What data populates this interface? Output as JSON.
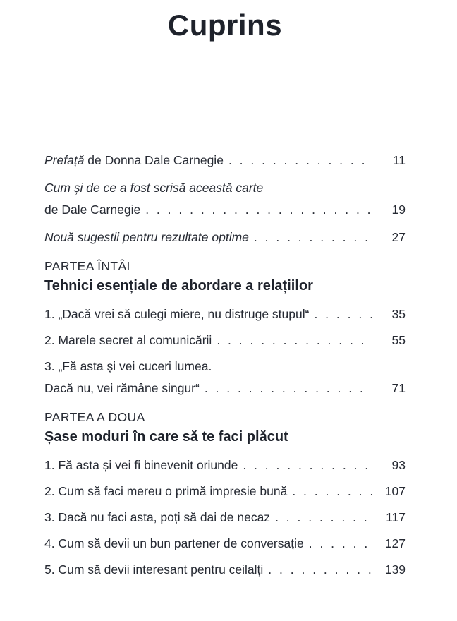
{
  "page": {
    "title": "Cuprins"
  },
  "colors": {
    "text": "#262a33",
    "heading": "#1e222b",
    "background": "#ffffff"
  },
  "toc": {
    "front_matter": [
      {
        "title_italic": "Prefață",
        "title_regular": " de Donna Dale Carnegie",
        "page": "11"
      },
      {
        "line1": "Cum și de ce a fost scrisă această carte",
        "line2": "de Dale Carnegie",
        "page": "19"
      },
      {
        "line1": "Nouă sugestii pentru rezultate optime",
        "page": "27"
      }
    ],
    "parts": [
      {
        "kicker": "PARTEA ÎNTÂI",
        "title": "Tehnici esențiale de abordare a relațiilor",
        "chapters": [
          {
            "line1": "1. „Dacă vrei să culegi miere, nu distruge stupul“",
            "page": "35"
          },
          {
            "line1": "2. Marele secret al comunicării",
            "page": "55"
          },
          {
            "line1": "3. „Fă asta și vei cuceri lumea.",
            "line2": "Dacă nu, vei rămâne singur“",
            "page": "71"
          }
        ]
      },
      {
        "kicker": "PARTEA A DOUA",
        "title": "Șase moduri în care să te faci plăcut",
        "chapters": [
          {
            "line1": "1. Fă asta și vei fi binevenit oriunde",
            "page": "93"
          },
          {
            "line1": "2. Cum să faci mereu o primă impresie bună",
            "page": "107"
          },
          {
            "line1": "3. Dacă nu faci asta, poți să dai de necaz",
            "page": "117"
          },
          {
            "line1": "4. Cum să devii un bun partener de conversație",
            "page": "127"
          },
          {
            "line1": "5. Cum să devii interesant pentru ceilalți",
            "page": "139"
          }
        ]
      }
    ]
  }
}
